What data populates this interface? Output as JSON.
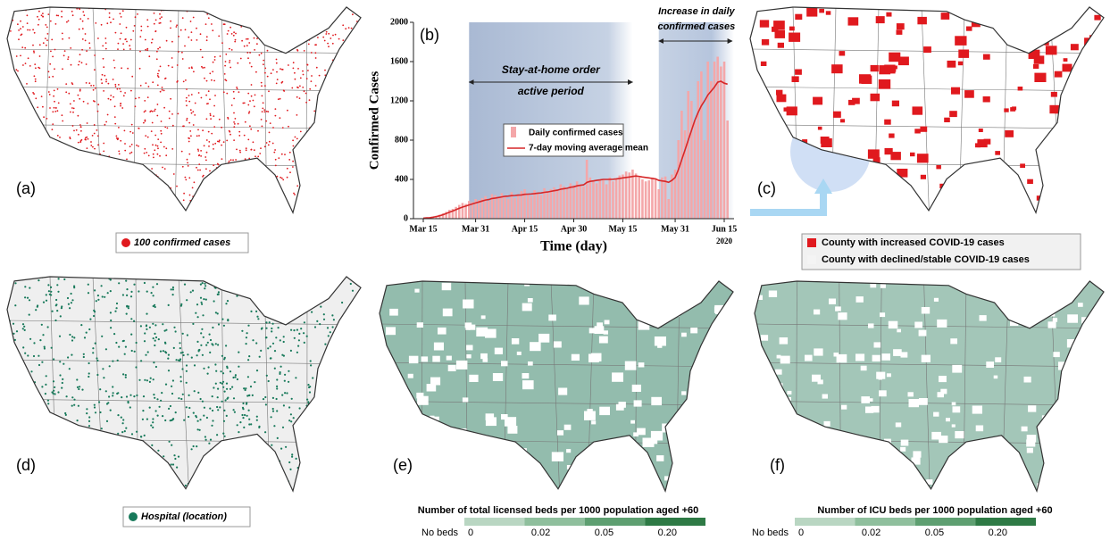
{
  "panels": {
    "a": {
      "label": "(a)",
      "legend": "100 confirmed cases"
    },
    "c": {
      "label": "(c)",
      "legend": [
        "County with increased COVID-19 cases",
        "County with declined/stable COVID-19 cases"
      ]
    },
    "d": {
      "label": "(d)",
      "legend": "Hospital (location)"
    },
    "e": {
      "label": "(e)",
      "colorbar": {
        "title": "Number of total licensed beds per 1000 population aged +60",
        "labels": [
          "No beds",
          "0",
          "0.02",
          "0.05",
          "0.20"
        ],
        "colors": [
          "#b9d6c2",
          "#8fbf9d",
          "#5e9f71",
          "#2e7a45"
        ]
      }
    },
    "f": {
      "label": "(f)",
      "colorbar": {
        "title": "Number of ICU beds per 1000 population aged +60",
        "labels": [
          "No beds",
          "0",
          "0.02",
          "0.05",
          "0.20"
        ],
        "colors": [
          "#b9d6c2",
          "#8fbf9d",
          "#5e9f71",
          "#2e7a45"
        ]
      }
    }
  },
  "chart_data": {
    "type": "bar",
    "panel_label": "(b)",
    "xlabel": "Time (day)",
    "ylabel": "Confirmed Cases",
    "x_year_label": "2020",
    "x": [
      "2020-03-15",
      "2020-03-16",
      "2020-03-17",
      "2020-03-18",
      "2020-03-19",
      "2020-03-20",
      "2020-03-21",
      "2020-03-22",
      "2020-03-23",
      "2020-03-24",
      "2020-03-25",
      "2020-03-26",
      "2020-03-27",
      "2020-03-28",
      "2020-03-29",
      "2020-03-30",
      "2020-03-31",
      "2020-04-01",
      "2020-04-02",
      "2020-04-03",
      "2020-04-04",
      "2020-04-05",
      "2020-04-06",
      "2020-04-07",
      "2020-04-08",
      "2020-04-09",
      "2020-04-10",
      "2020-04-11",
      "2020-04-12",
      "2020-04-13",
      "2020-04-14",
      "2020-04-15",
      "2020-04-16",
      "2020-04-17",
      "2020-04-18",
      "2020-04-19",
      "2020-04-20",
      "2020-04-21",
      "2020-04-22",
      "2020-04-23",
      "2020-04-24",
      "2020-04-25",
      "2020-04-26",
      "2020-04-27",
      "2020-04-28",
      "2020-04-29",
      "2020-04-30",
      "2020-05-01",
      "2020-05-02",
      "2020-05-03",
      "2020-05-04",
      "2020-05-05",
      "2020-05-06",
      "2020-05-07",
      "2020-05-08",
      "2020-05-09",
      "2020-05-10",
      "2020-05-11",
      "2020-05-12",
      "2020-05-13",
      "2020-05-14",
      "2020-05-15",
      "2020-05-16",
      "2020-05-17",
      "2020-05-18",
      "2020-05-19",
      "2020-05-20",
      "2020-05-21",
      "2020-05-22",
      "2020-05-23",
      "2020-05-24",
      "2020-05-25",
      "2020-05-26",
      "2020-05-27",
      "2020-05-28",
      "2020-05-29",
      "2020-05-30",
      "2020-05-31",
      "2020-06-01",
      "2020-06-02",
      "2020-06-03",
      "2020-06-04",
      "2020-06-05",
      "2020-06-06",
      "2020-06-07",
      "2020-06-08",
      "2020-06-09",
      "2020-06-10",
      "2020-06-11",
      "2020-06-12",
      "2020-06-13",
      "2020-06-14",
      "2020-06-15",
      "2020-06-16"
    ],
    "series": [
      {
        "name": "Daily confirmed cases",
        "color": "#f4a7a9",
        "values": [
          5,
          8,
          12,
          20,
          30,
          40,
          55,
          70,
          90,
          100,
          120,
          140,
          160,
          150,
          180,
          170,
          200,
          190,
          210,
          230,
          180,
          250,
          240,
          220,
          260,
          230,
          200,
          270,
          210,
          240,
          280,
          300,
          250,
          230,
          290,
          260,
          240,
          310,
          280,
          300,
          320,
          290,
          350,
          330,
          300,
          360,
          340,
          380,
          350,
          330,
          600,
          420,
          380,
          360,
          400,
          390,
          350,
          420,
          380,
          410,
          440,
          450,
          480,
          470,
          500,
          460,
          420,
          400,
          380,
          390,
          420,
          410,
          300,
          420,
          430,
          200,
          450,
          500,
          800,
          1100,
          900,
          1300,
          1200,
          1000,
          1400,
          1500,
          800,
          1600,
          1400,
          1600,
          1650,
          1550,
          1600,
          1000
        ]
      },
      {
        "name": "7-day moving average mean",
        "color": "#d62728",
        "values": [
          5,
          8,
          10,
          15,
          22,
          30,
          40,
          52,
          65,
          78,
          92,
          105,
          118,
          128,
          140,
          150,
          160,
          170,
          180,
          190,
          195,
          205,
          210,
          215,
          222,
          228,
          230,
          235,
          236,
          240,
          242,
          248,
          250,
          252,
          255,
          260,
          262,
          268,
          272,
          278,
          285,
          290,
          300,
          305,
          310,
          320,
          325,
          335,
          340,
          345,
          370,
          380,
          385,
          390,
          395,
          400,
          400,
          400,
          402,
          405,
          410,
          415,
          420,
          425,
          430,
          435,
          430,
          425,
          420,
          415,
          410,
          405,
          390,
          385,
          380,
          370,
          390,
          420,
          500,
          600,
          700,
          800,
          900,
          1000,
          1080,
          1150,
          1200,
          1260,
          1300,
          1340,
          1390,
          1400,
          1380,
          1370
        ]
      }
    ],
    "spans": [
      {
        "start": "2020-03-29",
        "end": "2020-05-18",
        "label": [
          "Stay-at-home order",
          "active period"
        ]
      },
      {
        "start": "2020-05-26",
        "end": "2020-06-18",
        "label": [
          "Increase in daily",
          "confirmed cases"
        ]
      }
    ],
    "xlim": [
      "2020-03-12",
      "2020-06-18"
    ],
    "xticks": [
      {
        "value": "2020-03-15",
        "label": "Mar 15"
      },
      {
        "value": "2020-03-31",
        "label": "Mar 31"
      },
      {
        "value": "2020-04-15",
        "label": "Apr 15"
      },
      {
        "value": "2020-04-30",
        "label": "Apr 30"
      },
      {
        "value": "2020-05-15",
        "label": "May 15"
      },
      {
        "value": "2020-05-31",
        "label": "May 31"
      },
      {
        "value": "2020-06-15",
        "label": "Jun 15"
      }
    ],
    "ylim": [
      0,
      2000
    ],
    "yticks": [
      0,
      400,
      800,
      1200,
      1600,
      2000
    ]
  }
}
